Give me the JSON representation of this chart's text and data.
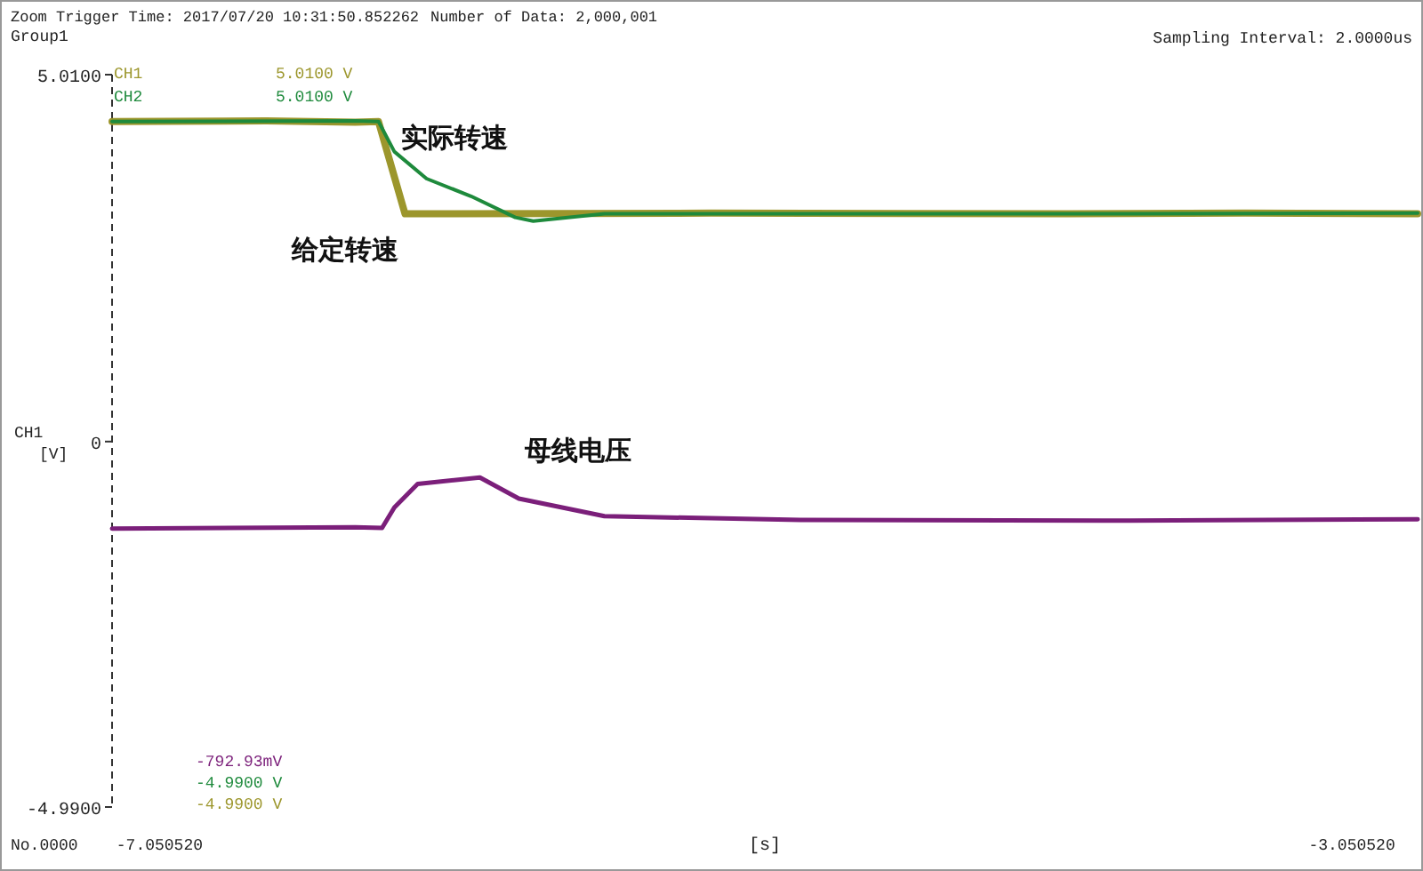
{
  "chart_data": {
    "type": "line",
    "title": "Zoom Trigger Time: 2017/07/20 10:31:50.852262",
    "subtitle": "Number of Data: 2,000,001",
    "annotations": [
      "Group1",
      "Sampling Interval:  2.0000us",
      "CH1",
      "5.0100 V",
      "CH2",
      "5.0100 V",
      "CH1",
      "[V]",
      "-792.93mV",
      "-4.9900 V",
      "-4.9900 V",
      "No.0000"
    ],
    "xlabel": "[s]",
    "xlim": [
      -7.21,
      -2.83
    ],
    "xticks": [
      {
        "value": -7.05052,
        "label": "-7.050520"
      },
      {
        "value": -3.05052,
        "label": "-3.050520"
      }
    ],
    "ylim": [
      -4.99,
      5.01
    ],
    "yticks": [
      {
        "value": 5.01,
        "label": "5.0100"
      },
      {
        "value": 0,
        "label": "0"
      },
      {
        "value": -4.99,
        "label": "-4.9900"
      }
    ],
    "grid": false,
    "legend": false,
    "series": [
      {
        "name": "给定转速",
        "color": "#9c962c",
        "x": [
          -7.21,
          -6.692,
          -6.394,
          -6.316,
          -6.227,
          -5.2,
          -4.007,
          -3.409,
          -2.83
        ],
        "values": [
          4.37,
          4.38,
          4.36,
          4.37,
          3.11,
          3.12,
          3.11,
          3.12,
          3.11
        ]
      },
      {
        "name": "实际转速",
        "color": "#1e8a3c",
        "x": [
          -7.21,
          -6.394,
          -6.316,
          -6.263,
          -6.155,
          -6.006,
          -5.857,
          -5.797,
          -5.558,
          -4.006,
          -2.83
        ],
        "values": [
          4.37,
          4.38,
          4.37,
          3.96,
          3.59,
          3.35,
          3.06,
          3.01,
          3.11,
          3.11,
          3.12
        ]
      },
      {
        "name": "母线电压",
        "color": "#7b1f7a",
        "x": [
          -7.21,
          -6.394,
          -6.304,
          -6.263,
          -6.185,
          -5.976,
          -5.845,
          -5.558,
          -4.901,
          -3.886,
          -2.83
        ],
        "values": [
          -1.19,
          -1.17,
          -1.18,
          -0.9,
          -0.58,
          -0.49,
          -0.78,
          -1.02,
          -1.07,
          -1.08,
          -1.06
        ]
      }
    ]
  }
}
